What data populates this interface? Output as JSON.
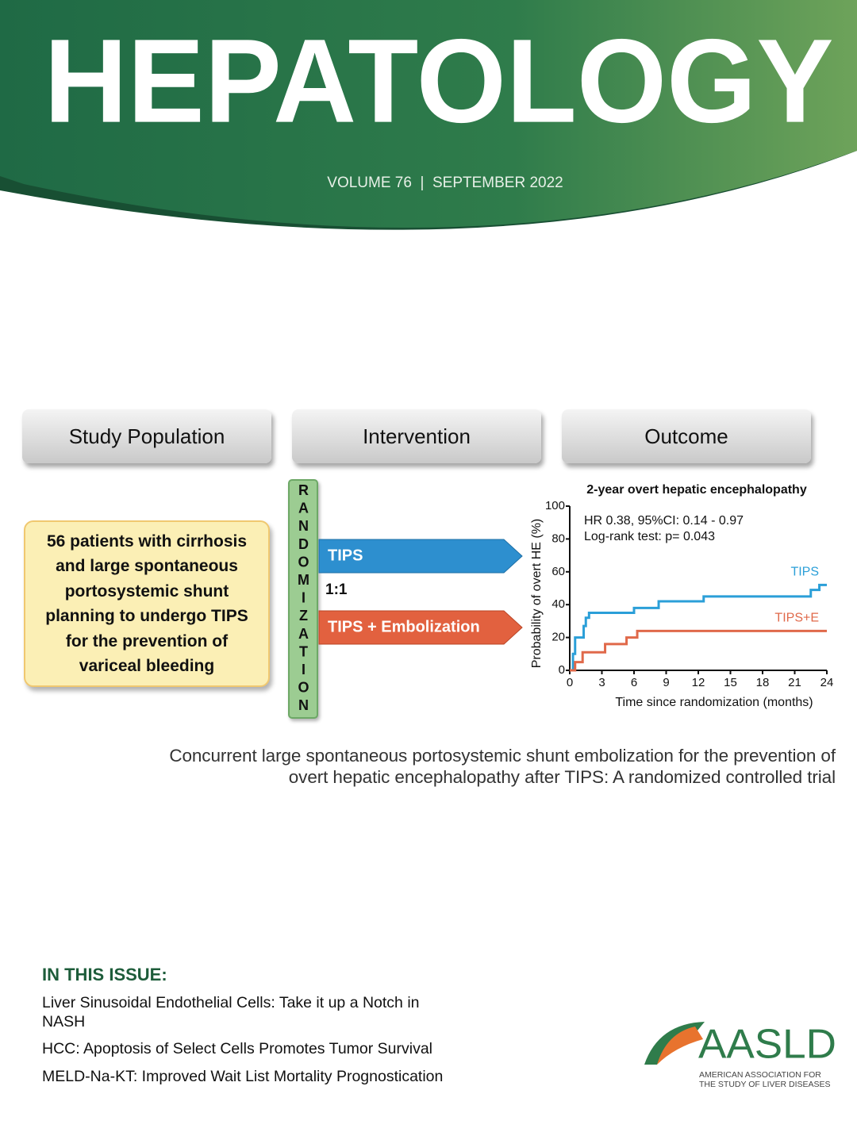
{
  "header": {
    "title": "HEPATOLOGY",
    "issue": "VOLUME 76  |  SEPTEMBER 2022"
  },
  "abstract": {
    "columns": [
      "Study Population",
      "Intervention",
      "Outcome"
    ],
    "population": "56 patients with cirrhosis and large spontaneous portosystemic shunt planning to undergo TIPS for the prevention of variceal bleeding",
    "randomization": "RANDOMIZATION",
    "ratio": "1:1",
    "arms": [
      "TIPS",
      "TIPS + Embolization"
    ]
  },
  "chart_data": {
    "type": "line",
    "step": true,
    "title": "2-year overt hepatic encephalopathy",
    "annotations": [
      "HR 0.38, 95%CI: 0.14 - 0.97",
      "Log-rank test: p= 0.043"
    ],
    "x_label": "Time since randomization (months)",
    "y_label": "Probability of overt HE (%)",
    "xlim": [
      0,
      24
    ],
    "xticks": [
      0,
      3,
      6,
      9,
      12,
      15,
      18,
      21,
      24
    ],
    "ylim": [
      0,
      100
    ],
    "yticks": [
      0,
      20,
      40,
      60,
      80,
      100
    ],
    "series": [
      {
        "name": "TIPS",
        "color": "#2b9fd8",
        "x": [
          0,
          0.3,
          0.5,
          1.3,
          1.5,
          1.8,
          6,
          8.3,
          12.5,
          22.5,
          23.3,
          24
        ],
        "values": [
          0,
          10,
          20,
          27,
          32,
          35,
          38,
          42,
          45,
          49,
          52,
          52
        ]
      },
      {
        "name": "TIPS+E",
        "color": "#e0694a",
        "x": [
          0,
          0.5,
          1.2,
          3.3,
          5.3,
          6.3,
          24
        ],
        "values": [
          0,
          5,
          11,
          16,
          20,
          24,
          24
        ]
      }
    ]
  },
  "caption": [
    "Concurrent large spontaneous portosystemic shunt embolization for the prevention of",
    "overt hepatic encephalopathy after TIPS: A randomized controlled trial"
  ],
  "in_this_issue": {
    "heading": "IN THIS ISSUE:",
    "items": [
      "Liver Sinusoidal Endothelial Cells: Take it up a Notch in NASH",
      "HCC: Apoptosis of Select Cells Promotes Tumor Survival",
      "MELD-Na-KT: Improved Wait List Mortality Prognostication"
    ]
  },
  "logo": {
    "name": "AASLD",
    "subtitle": [
      "AMERICAN ASSOCIATION FOR",
      "THE STUDY OF LIVER DISEASES"
    ]
  }
}
